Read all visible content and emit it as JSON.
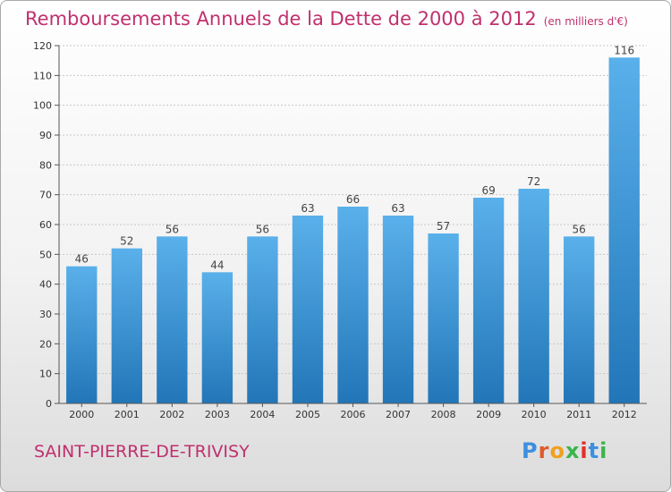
{
  "title": "Remboursements Annuels de la Dette de 2000 à 2012",
  "unit_note": "(en milliers d'€)",
  "commune": "SAINT-PIERRE-DE-TRIVISY",
  "logo": {
    "letters": [
      "P",
      "r",
      "o",
      "x",
      "i",
      "t",
      "i"
    ],
    "colors": [
      "#3d8fe0",
      "#e05a2a",
      "#f0a020",
      "#3ab54a",
      "#e0302a",
      "#3d8fe0",
      "#3ab54a"
    ]
  },
  "colors": {
    "title": "#c0306e",
    "bar_top": "#5ab0ea",
    "bar_bottom": "#2276b8"
  },
  "chart_data": {
    "type": "bar",
    "categories": [
      "2000",
      "2001",
      "2002",
      "2003",
      "2004",
      "2005",
      "2006",
      "2007",
      "2008",
      "2009",
      "2010",
      "2011",
      "2012"
    ],
    "values": [
      46,
      52,
      56,
      44,
      56,
      63,
      66,
      63,
      57,
      69,
      72,
      56,
      116
    ],
    "ylim": [
      0,
      120
    ],
    "yticks": [
      0,
      10,
      20,
      30,
      40,
      50,
      60,
      70,
      80,
      90,
      100,
      110,
      120
    ],
    "grid": true
  }
}
